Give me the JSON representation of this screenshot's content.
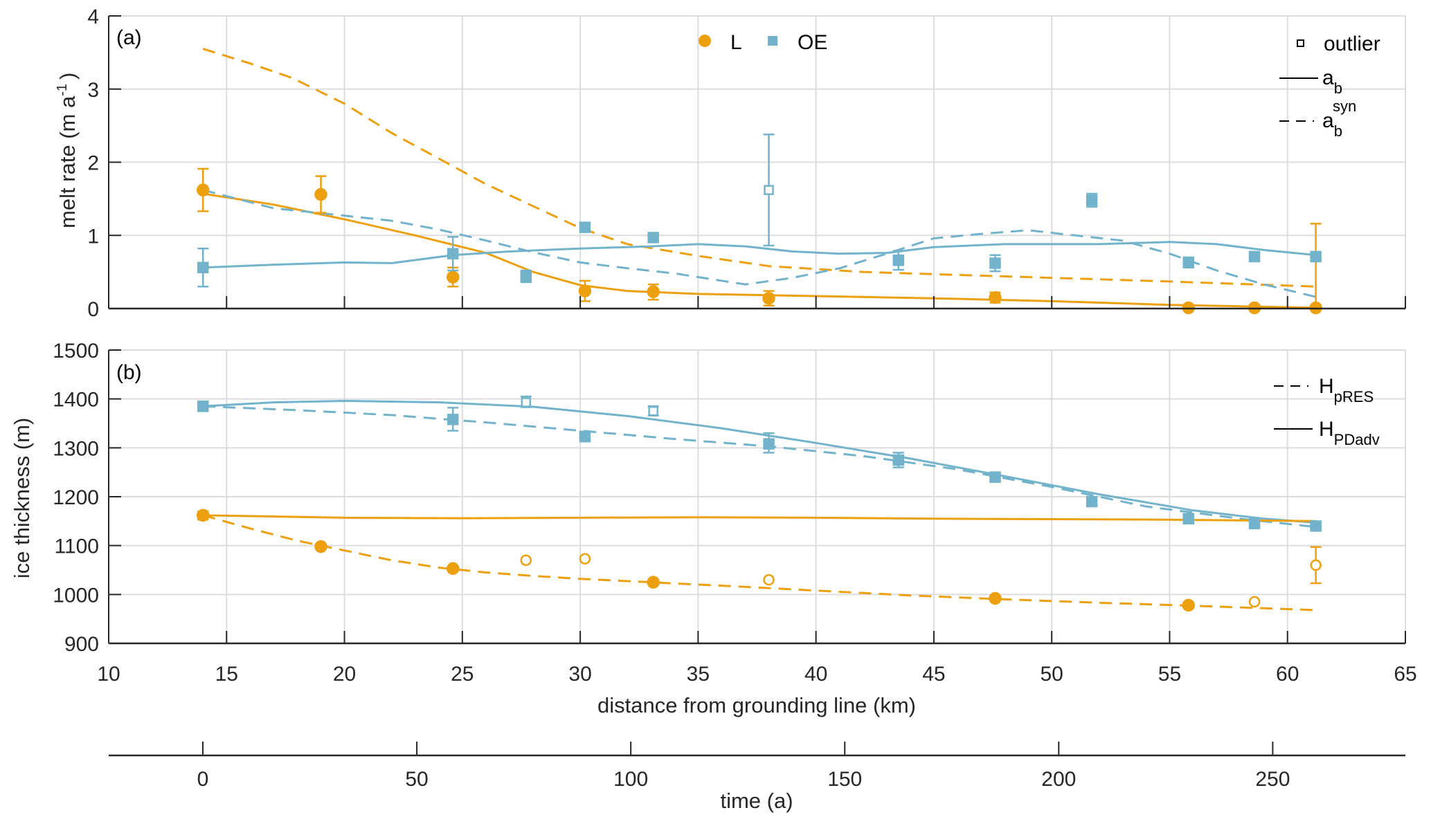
{
  "colors": {
    "L": "#EDA00F",
    "OE": "#72B3CB",
    "axis": "#262626",
    "grid": "#DCDCDC"
  },
  "chart_data": [
    {
      "panel": "(a)",
      "type": "scatter",
      "ylabel": "melt rate (m a",
      "ylabel_sup": "-1",
      "ylabel_close": ")",
      "ylim": [
        0,
        4
      ],
      "yticks": [
        "0",
        "1",
        "2",
        "3",
        "4"
      ],
      "grid": true,
      "legend_markers": {
        "L_label": "L",
        "OE_label": "OE",
        "placement": "top-center"
      },
      "legend_lines": {
        "outlier": "outlier",
        "solid_main": "a",
        "solid_sub": "b",
        "dashed_main": "a",
        "dashed_sub": "b",
        "dashed_sup": "syn",
        "placement": "top-right"
      },
      "series": [
        {
          "name": "L",
          "marker": "circle",
          "points": [
            {
              "x": 14.0,
              "y": 1.62,
              "lo": 1.33,
              "hi": 1.91
            },
            {
              "x": 19.0,
              "y": 1.56,
              "lo": 1.31,
              "hi": 1.81
            },
            {
              "x": 24.6,
              "y": 0.43,
              "lo": 0.3,
              "hi": 0.56
            },
            {
              "x": 30.2,
              "y": 0.24,
              "lo": 0.1,
              "hi": 0.38
            },
            {
              "x": 33.1,
              "y": 0.23,
              "lo": 0.12,
              "hi": 0.33
            },
            {
              "x": 38.0,
              "y": 0.14,
              "lo": 0.04,
              "hi": 0.24
            },
            {
              "x": 47.6,
              "y": 0.15,
              "lo": 0.08,
              "hi": 0.22
            },
            {
              "x": 55.8,
              "y": 0.01
            },
            {
              "x": 58.6,
              "y": 0.01
            },
            {
              "x": 61.2,
              "y": 0.01,
              "lo": 0.0,
              "hi": 1.16
            }
          ]
        },
        {
          "name": "OE",
          "marker": "square",
          "points": [
            {
              "x": 14.0,
              "y": 0.56,
              "lo": 0.3,
              "hi": 0.82
            },
            {
              "x": 24.6,
              "y": 0.75,
              "lo": 0.52,
              "hi": 0.98
            },
            {
              "x": 27.7,
              "y": 0.44,
              "lo": 0.36,
              "hi": 0.52
            },
            {
              "x": 30.2,
              "y": 1.11,
              "lo": 1.05,
              "hi": 1.17
            },
            {
              "x": 33.1,
              "y": 0.97,
              "lo": 0.91,
              "hi": 1.03
            },
            {
              "x": 38.0,
              "y": 1.62,
              "lo": 0.86,
              "hi": 2.38,
              "outlier": true
            },
            {
              "x": 43.5,
              "y": 0.66,
              "lo": 0.53,
              "hi": 0.79
            },
            {
              "x": 47.6,
              "y": 0.62,
              "lo": 0.51,
              "hi": 0.73
            },
            {
              "x": 51.7,
              "y": 1.48,
              "lo": 1.39,
              "hi": 1.57
            },
            {
              "x": 55.8,
              "y": 0.63,
              "lo": 0.56,
              "hi": 0.7
            },
            {
              "x": 58.6,
              "y": 0.71,
              "lo": 0.65,
              "hi": 0.77
            },
            {
              "x": 61.2,
              "y": 0.71,
              "lo": 0.65,
              "hi": 0.77
            }
          ]
        }
      ],
      "lines": [
        {
          "name": "L a_b",
          "color": "L",
          "dash": false,
          "x": [
            14,
            17,
            20,
            23,
            26,
            28,
            30,
            32,
            35,
            40,
            45,
            50,
            55,
            61.2
          ],
          "y": [
            1.57,
            1.42,
            1.22,
            1.0,
            0.76,
            0.5,
            0.32,
            0.24,
            0.2,
            0.17,
            0.14,
            0.1,
            0.05,
            0.01
          ]
        },
        {
          "name": "L a_b syn",
          "color": "L",
          "dash": true,
          "x": [
            14,
            16,
            17.8,
            20,
            22,
            24,
            26,
            28,
            30,
            32,
            35,
            38,
            42,
            46,
            50,
            55,
            61.2
          ],
          "y": [
            3.55,
            3.35,
            3.15,
            2.8,
            2.4,
            2.05,
            1.7,
            1.4,
            1.1,
            0.88,
            0.72,
            0.58,
            0.5,
            0.46,
            0.42,
            0.37,
            0.3
          ]
        },
        {
          "name": "OE a_b",
          "color": "OE",
          "dash": false,
          "x": [
            14,
            17,
            20,
            22,
            24.6,
            27,
            30,
            33,
            35,
            37,
            39,
            41,
            43,
            45,
            48,
            52,
            55,
            57,
            59,
            61.2
          ],
          "y": [
            0.56,
            0.6,
            0.63,
            0.62,
            0.73,
            0.78,
            0.82,
            0.85,
            0.88,
            0.85,
            0.78,
            0.75,
            0.76,
            0.84,
            0.88,
            0.88,
            0.91,
            0.88,
            0.8,
            0.73
          ]
        },
        {
          "name": "OE a_b syn",
          "color": "OE",
          "dash": true,
          "x": [
            14,
            17,
            20,
            22,
            24,
            26,
            28,
            30,
            32,
            34,
            37,
            39,
            41,
            43,
            45,
            47,
            49,
            51,
            53,
            55,
            57,
            59,
            61.2
          ],
          "y": [
            1.62,
            1.37,
            1.27,
            1.2,
            1.08,
            0.93,
            0.77,
            0.63,
            0.55,
            0.48,
            0.33,
            0.42,
            0.55,
            0.75,
            0.96,
            1.02,
            1.07,
            1.0,
            0.93,
            0.75,
            0.52,
            0.33,
            0.16
          ]
        }
      ]
    },
    {
      "panel": "(b)",
      "type": "scatter",
      "ylabel": "ice thickness (m)",
      "ylim": [
        900,
        1500
      ],
      "yticks": [
        "900",
        "1000",
        "1100",
        "1200",
        "1300",
        "1400",
        "1500"
      ],
      "grid": true,
      "legend_lines": {
        "dashed_main": "H",
        "dashed_sub": "pRES",
        "solid_main": "H",
        "solid_sub": "PDadv",
        "placement": "top-right"
      },
      "series": [
        {
          "name": "OE",
          "marker": "square",
          "points": [
            {
              "x": 14.0,
              "y": 1385,
              "lo": 1375,
              "hi": 1395
            },
            {
              "x": 24.6,
              "y": 1358,
              "lo": 1335,
              "hi": 1382
            },
            {
              "x": 27.7,
              "y": 1393,
              "lo": 1383,
              "hi": 1405,
              "outlier": true
            },
            {
              "x": 30.2,
              "y": 1323,
              "lo": 1313,
              "hi": 1333
            },
            {
              "x": 33.1,
              "y": 1375,
              "lo": 1366,
              "hi": 1385,
              "outlier": true
            },
            {
              "x": 38.0,
              "y": 1308,
              "lo": 1290,
              "hi": 1330
            },
            {
              "x": 43.5,
              "y": 1275,
              "lo": 1260,
              "hi": 1290
            },
            {
              "x": 47.6,
              "y": 1240,
              "lo": 1233,
              "hi": 1250
            },
            {
              "x": 51.7,
              "y": 1190,
              "lo": 1182,
              "hi": 1198
            },
            {
              "x": 55.8,
              "y": 1155,
              "lo": 1148,
              "hi": 1163
            },
            {
              "x": 58.6,
              "y": 1145,
              "lo": 1138,
              "hi": 1152
            },
            {
              "x": 61.2,
              "y": 1140,
              "lo": 1133,
              "hi": 1148
            }
          ]
        },
        {
          "name": "L",
          "marker": "circle",
          "points": [
            {
              "x": 14.0,
              "y": 1162,
              "lo": 1153,
              "hi": 1170
            },
            {
              "x": 19.0,
              "y": 1098
            },
            {
              "x": 24.6,
              "y": 1053
            },
            {
              "x": 27.7,
              "y": 1070,
              "outlier": true
            },
            {
              "x": 30.2,
              "y": 1073,
              "outlier": true
            },
            {
              "x": 33.1,
              "y": 1025
            },
            {
              "x": 38.0,
              "y": 1030,
              "outlier": true
            },
            {
              "x": 47.6,
              "y": 992
            },
            {
              "x": 55.8,
              "y": 978
            },
            {
              "x": 58.6,
              "y": 985,
              "outlier": true
            },
            {
              "x": 61.2,
              "y": 1060,
              "lo": 1023,
              "hi": 1097,
              "outlier": true
            }
          ]
        }
      ],
      "lines": [
        {
          "name": "OE H_PDadv",
          "color": "OE",
          "dash": false,
          "x": [
            14,
            17,
            20,
            24,
            28,
            32,
            36,
            40,
            44,
            48,
            52,
            56,
            59,
            61.2
          ],
          "y": [
            1385,
            1393,
            1396,
            1393,
            1384,
            1365,
            1340,
            1310,
            1278,
            1242,
            1205,
            1172,
            1155,
            1147
          ]
        },
        {
          "name": "OE H_pRES",
          "color": "OE",
          "dash": true,
          "x": [
            14,
            18,
            22,
            26,
            30,
            34,
            38,
            42,
            46,
            50,
            54,
            58,
            61.2
          ],
          "y": [
            1385,
            1377,
            1367,
            1352,
            1335,
            1318,
            1303,
            1283,
            1256,
            1220,
            1180,
            1155,
            1138
          ]
        },
        {
          "name": "L H_PDadv",
          "color": "L",
          "dash": false,
          "x": [
            14,
            20,
            25,
            30,
            35,
            40,
            45,
            50,
            55,
            61.2
          ],
          "y": [
            1162,
            1157,
            1156,
            1157,
            1158,
            1157,
            1155,
            1154,
            1153,
            1150
          ]
        },
        {
          "name": "L H_pRES",
          "color": "L",
          "dash": true,
          "x": [
            14,
            16,
            18,
            20,
            22,
            24,
            26,
            28,
            30,
            33,
            36,
            40,
            44,
            48,
            52,
            56,
            61.2
          ],
          "y": [
            1162,
            1135,
            1110,
            1090,
            1070,
            1055,
            1045,
            1038,
            1032,
            1025,
            1018,
            1008,
            998,
            990,
            983,
            977,
            968
          ]
        }
      ]
    }
  ],
  "x_axis": {
    "label": "distance from grounding line (km)",
    "range": [
      10,
      65
    ],
    "ticks": [
      "10",
      "15",
      "20",
      "25",
      "30",
      "35",
      "40",
      "45",
      "50",
      "55",
      "60",
      "65"
    ]
  },
  "time_axis": {
    "label": "time (a)",
    "range": [
      -22,
      281
    ],
    "ticks": [
      "0",
      "50",
      "100",
      "150",
      "200",
      "250"
    ]
  }
}
